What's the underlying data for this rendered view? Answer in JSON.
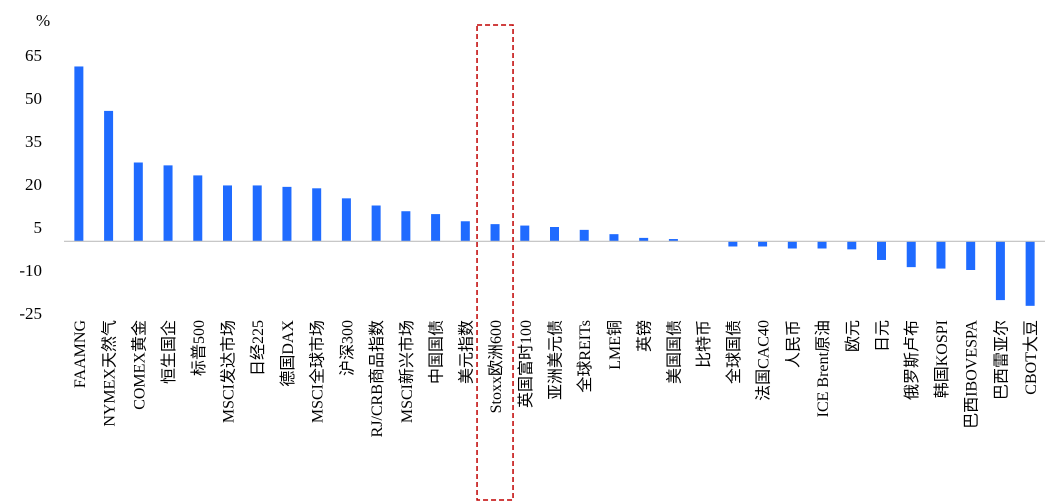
{
  "chart_data": {
    "type": "bar",
    "ylabel": "%",
    "ylim": [
      -25,
      65
    ],
    "yticks": [
      65,
      50,
      35,
      20,
      5,
      -10,
      -25
    ],
    "bar_color": "#1f6bff",
    "highlight_color": "#c00000",
    "highlight_category": "Stoxx欧洲600",
    "categories": [
      "FAAMNG",
      "NYMEX天然气",
      "COMEX黄金",
      "恒生国企",
      "标普500",
      "MSCI发达市场",
      "日经225",
      "德国DAX",
      "MSCI全球市场",
      "沪深300",
      "RJ/CRB商品指数",
      "MSCI新兴市场",
      "中国国债",
      "美元指数",
      "Stoxx欧洲600",
      "英国富时100",
      "亚洲美元债",
      "全球REITs",
      "LME铜",
      "英镑",
      "美国国债",
      "比特币",
      "全球国债",
      "法国CAC40",
      "人民币",
      "ICE Brent原油",
      "欧元",
      "日元",
      "俄罗斯卢布",
      "韩国KOSPI",
      "巴西IBOVESPA",
      "巴西雷亚尔",
      "CBOT大豆"
    ],
    "values": [
      61,
      45.5,
      27.5,
      26.5,
      23,
      19.5,
      19.5,
      19,
      18.5,
      15,
      12.5,
      10.5,
      9.5,
      7,
      6,
      5.5,
      5,
      4,
      2.5,
      1.2,
      0.8,
      0,
      -1.8,
      -1.8,
      -2.5,
      -2.5,
      -2.8,
      -6.5,
      -9,
      -9.5,
      -10,
      -20.5,
      -22.5
    ]
  }
}
